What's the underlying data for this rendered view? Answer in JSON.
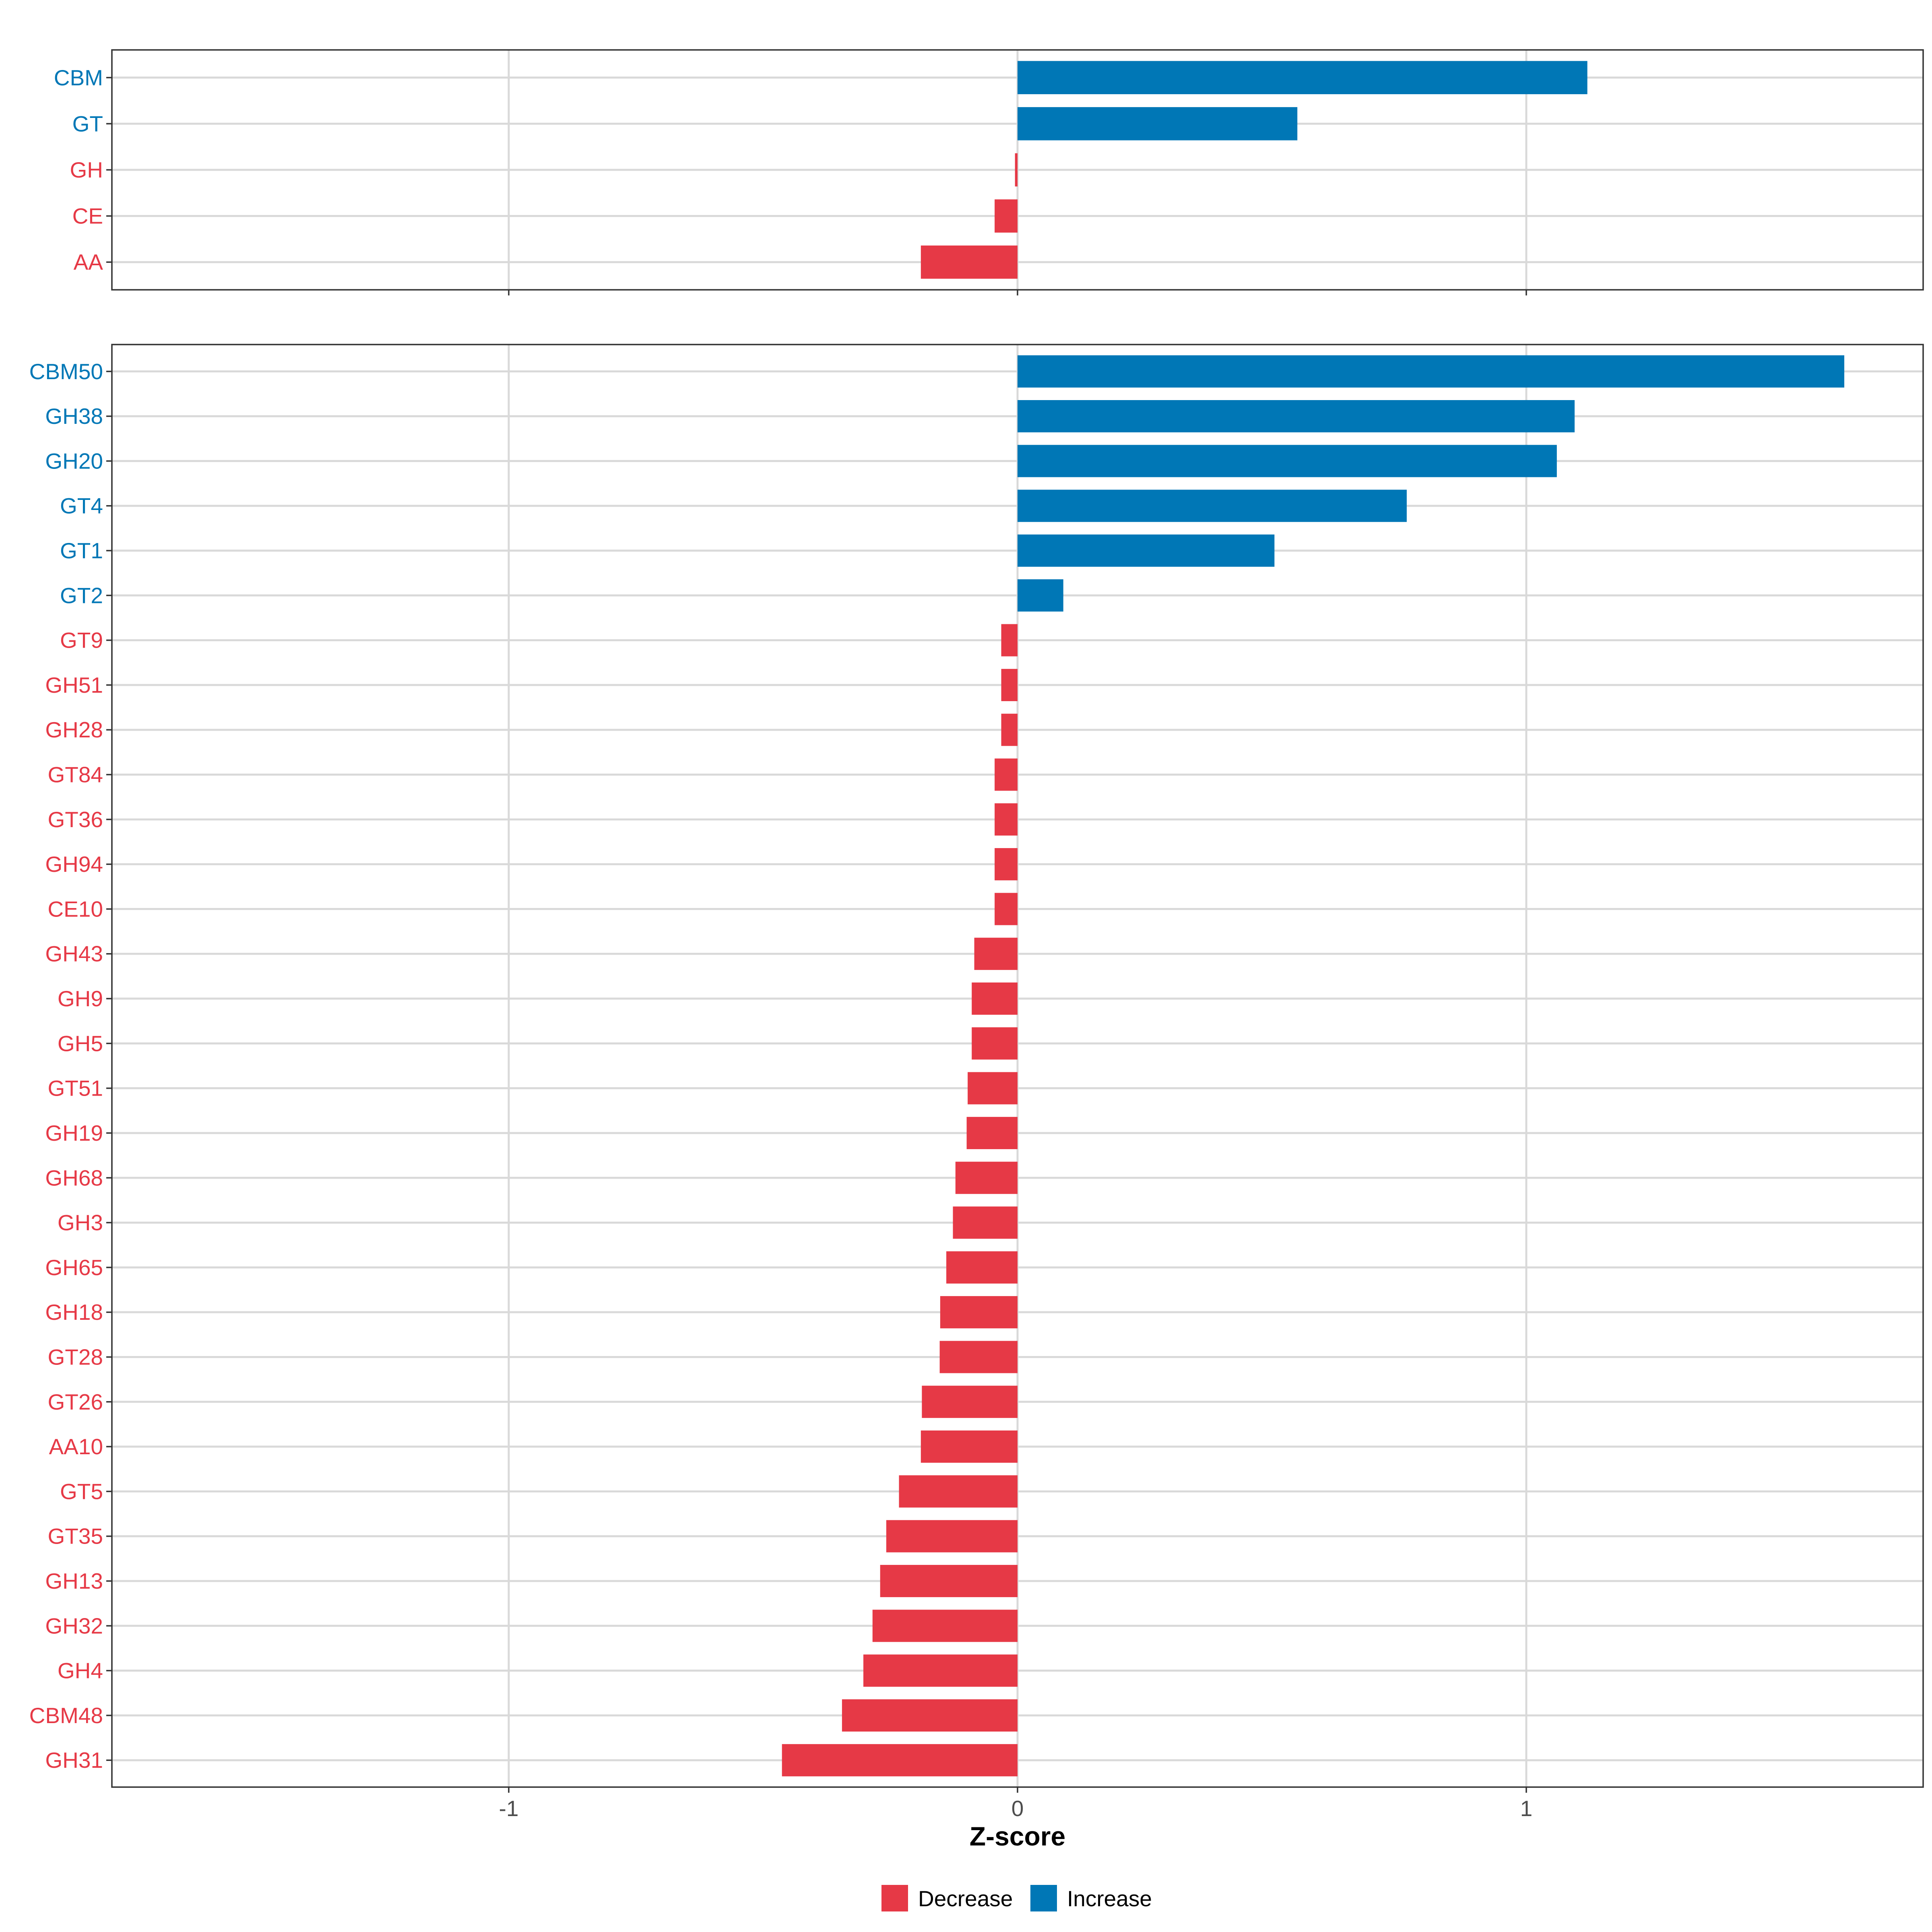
{
  "colors": {
    "decrease": "#E63946",
    "increase": "#0077B6",
    "grid": "#d9d9d9",
    "axis": "#333333",
    "tick_text": "#4d4d4d"
  },
  "chart_data": [
    {
      "type": "bar",
      "orientation": "horizontal",
      "panel": "families",
      "categories": [
        "CBM",
        "GT",
        "GH",
        "CE",
        "AA"
      ],
      "values": [
        1.12,
        0.55,
        -0.005,
        -0.045,
        -0.19
      ],
      "groups": [
        "Increase",
        "Increase",
        "Decrease",
        "Decrease",
        "Decrease"
      ],
      "xlim": [
        -1.78,
        1.78
      ],
      "xticks": [
        -1,
        0,
        1
      ],
      "xtick_labels": [
        "-1",
        "0",
        "1"
      ]
    },
    {
      "type": "bar",
      "orientation": "horizontal",
      "panel": "subfamilies",
      "categories": [
        "CBM50",
        "GH38",
        "GH20",
        "GT4",
        "GT1",
        "GT2",
        "GT9",
        "GH51",
        "GH28",
        "GT84",
        "GT36",
        "GH94",
        "CE10",
        "GH43",
        "GH9",
        "GH5",
        "GT51",
        "GH19",
        "GH68",
        "GH3",
        "GH65",
        "GH18",
        "GT28",
        "GT26",
        "AA10",
        "GT5",
        "GT35",
        "GH13",
        "GH32",
        "GH4",
        "CBM48",
        "GH31"
      ],
      "values": [
        1.625,
        1.095,
        1.06,
        0.765,
        0.505,
        0.09,
        -0.032,
        -0.032,
        -0.032,
        -0.045,
        -0.045,
        -0.045,
        -0.045,
        -0.085,
        -0.09,
        -0.09,
        -0.098,
        -0.1,
        -0.122,
        -0.127,
        -0.14,
        -0.152,
        -0.153,
        -0.188,
        -0.19,
        -0.233,
        -0.258,
        -0.27,
        -0.285,
        -0.303,
        -0.345,
        -0.463
      ],
      "groups": [
        "Increase",
        "Increase",
        "Increase",
        "Increase",
        "Increase",
        "Increase",
        "Decrease",
        "Decrease",
        "Decrease",
        "Decrease",
        "Decrease",
        "Decrease",
        "Decrease",
        "Decrease",
        "Decrease",
        "Decrease",
        "Decrease",
        "Decrease",
        "Decrease",
        "Decrease",
        "Decrease",
        "Decrease",
        "Decrease",
        "Decrease",
        "Decrease",
        "Decrease",
        "Decrease",
        "Decrease",
        "Decrease",
        "Decrease",
        "Decrease",
        "Decrease"
      ],
      "xlim": [
        -1.78,
        1.78
      ],
      "xticks": [
        -1,
        0,
        1
      ],
      "xtick_labels": [
        "-1",
        "0",
        "1"
      ]
    }
  ],
  "axis": {
    "xlabel": "Z-score"
  },
  "legend": {
    "position": "bottom",
    "items": [
      {
        "label": "Decrease",
        "color": "#E63946"
      },
      {
        "label": "Increase",
        "color": "#0077B6"
      }
    ]
  }
}
